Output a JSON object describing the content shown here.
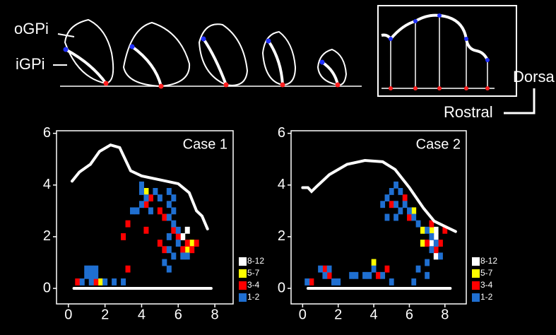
{
  "figure_labels": {
    "outer": "oGPi",
    "inner": "iGPi",
    "dorsal": "Dorsa",
    "rostral": "Rostral"
  },
  "chart_data": [
    {
      "type": "heatmap",
      "title": "Case 1",
      "xlim": [
        -0.65,
        9.0
      ],
      "ylim": [
        -0.6,
        6.1
      ],
      "xticks": [
        0,
        2,
        4,
        6,
        8
      ],
      "yticks": [
        0,
        2,
        4,
        6
      ],
      "series": [
        {
          "name": "8-12",
          "color": "#ffffff",
          "x": [
            6.25,
            6.5
          ],
          "y": [
            2.0,
            2.25
          ]
        },
        {
          "name": "5-7",
          "color": "#ffff00",
          "x": [
            4.25,
            6.75,
            6.5,
            1.75
          ],
          "y": [
            3.75,
            1.75,
            1.5,
            0.25
          ]
        },
        {
          "name": "3-4",
          "color": "#ff0000",
          "x": [
            4.5,
            4.25,
            5.0,
            5.25,
            3.25,
            4.25,
            5.75,
            3.0,
            6.0,
            5.0,
            6.5,
            7.0,
            5.25,
            6.25,
            6.75,
            3.25,
            0.5,
            1.5
          ],
          "y": [
            3.5,
            3.25,
            3.0,
            2.75,
            2.5,
            2.25,
            2.25,
            2.0,
            2.0,
            1.75,
            1.75,
            1.75,
            1.5,
            1.5,
            1.5,
            0.75,
            0.25,
            0.25
          ]
        },
        {
          "name": "1-2",
          "color": "#1f6fd1",
          "x": [
            4.0,
            4.0,
            4.25,
            4.0,
            3.75,
            3.5,
            4.5,
            4.75,
            5.0,
            5.5,
            5.75,
            5.5,
            5.75,
            5.5,
            5.75,
            6.0,
            5.5,
            6.0,
            5.5,
            5.75,
            6.25,
            5.25,
            5.5,
            6.5,
            1.0,
            1.25,
            1.0,
            1.25,
            1.5,
            1.25,
            0.75,
            2.0,
            3.0,
            2.5,
            1.5
          ],
          "y": [
            4.0,
            3.75,
            3.5,
            3.25,
            3.0,
            3.0,
            3.0,
            3.75,
            3.5,
            3.75,
            3.5,
            3.25,
            3.0,
            2.75,
            2.5,
            2.25,
            2.0,
            1.75,
            1.5,
            1.25,
            1.25,
            1.0,
            0.75,
            1.25,
            0.75,
            0.75,
            0.5,
            0.5,
            0.5,
            0.25,
            0.25,
            0.25,
            0.25,
            0.25,
            0.75
          ]
        }
      ],
      "outline": {
        "x": [
          0.2,
          0.6,
          1.2,
          1.7,
          2.3,
          2.8,
          3.1,
          3.4,
          4.0,
          5.0,
          6.0,
          6.6,
          7.0,
          7.3,
          7.6
        ],
        "y": [
          4.15,
          4.5,
          4.8,
          5.3,
          5.55,
          5.45,
          5.0,
          4.55,
          4.35,
          4.2,
          4.05,
          3.7,
          3.0,
          2.8,
          2.3
        ]
      },
      "baseline": {
        "x": [
          0.3,
          7.8
        ],
        "y": [
          0,
          0
        ]
      }
    },
    {
      "type": "heatmap",
      "title": "Case 2",
      "xlim": [
        -0.65,
        9.2
      ],
      "ylim": [
        -0.6,
        6.1
      ],
      "xticks": [
        0,
        2,
        4,
        6,
        8
      ],
      "yticks": [
        0,
        2,
        4,
        6
      ],
      "series": [
        {
          "name": "8-12",
          "color": "#ffffff",
          "x": [
            7.5,
            7.5,
            7.25,
            7.5
          ],
          "y": [
            2.0,
            2.25,
            1.75,
            1.25
          ]
        },
        {
          "name": "5-7",
          "color": "#ffff00",
          "x": [
            6.25,
            7.25,
            6.75,
            4.0,
            6.75
          ],
          "y": [
            3.0,
            2.25,
            1.75,
            1.0,
            2.25
          ]
        },
        {
          "name": "3-4",
          "color": "#ff0000",
          "x": [
            5.75,
            5.0,
            6.0,
            7.25,
            7.0,
            7.5,
            7.75,
            8.0,
            1.25,
            1.5,
            4.25,
            4.75,
            0.5
          ],
          "y": [
            3.5,
            3.25,
            2.75,
            2.5,
            1.75,
            1.5,
            1.75,
            2.25,
            0.75,
            0.5,
            0.5,
            0.75,
            0.25
          ]
        },
        {
          "name": "1-2",
          "color": "#1f6fd1",
          "x": [
            5.25,
            5.0,
            5.5,
            4.75,
            5.25,
            4.5,
            5.75,
            6.0,
            5.5,
            6.25,
            5.25,
            4.75,
            6.5,
            7.0,
            7.25,
            7.5,
            7.25,
            7.75,
            7.0,
            6.5,
            7.0,
            6.25,
            4.0,
            3.75,
            3.5,
            4.5,
            3.0,
            2.75,
            1.0,
            1.5,
            1.25,
            1.75,
            2.0,
            0.25,
            5.0
          ],
          "y": [
            4.0,
            3.75,
            3.75,
            3.5,
            3.25,
            3.25,
            3.25,
            3.0,
            3.0,
            2.75,
            2.75,
            2.75,
            2.5,
            2.25,
            2.0,
            1.75,
            1.5,
            1.25,
            1.0,
            0.75,
            0.5,
            0.25,
            0.75,
            0.5,
            0.5,
            0.5,
            0.5,
            0.5,
            0.75,
            0.75,
            0.5,
            0.25,
            0.25,
            0.25,
            0.25
          ]
        }
      ],
      "outline": {
        "x": [
          0.0,
          0.3,
          0.5,
          0.8,
          1.5,
          2.5,
          3.5,
          4.5,
          5.2,
          6.0,
          6.8,
          7.4,
          8.0,
          8.6
        ],
        "y": [
          3.9,
          3.9,
          3.75,
          3.95,
          4.4,
          4.8,
          4.95,
          4.9,
          4.6,
          3.9,
          3.1,
          2.6,
          2.4,
          2.2
        ]
      },
      "baseline": {
        "x": [
          0.3,
          8.3
        ],
        "y": [
          0,
          0
        ]
      }
    }
  ]
}
